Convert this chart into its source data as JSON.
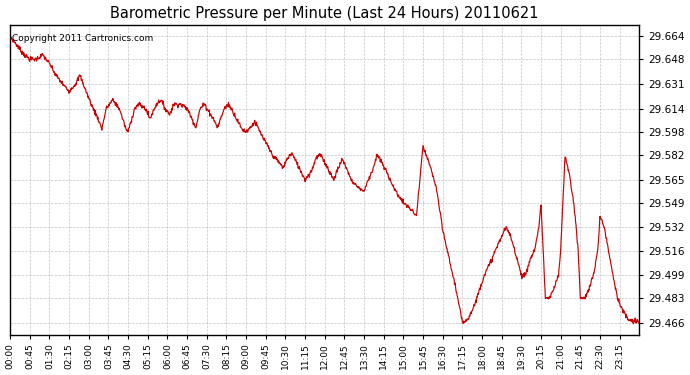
{
  "title": "Barometric Pressure per Minute (Last 24 Hours) 20110621",
  "copyright_text": "Copyright 2011 Cartronics.com",
  "line_color": "#cc0000",
  "background_color": "#ffffff",
  "grid_color": "#bbbbbb",
  "yticks": [
    29.466,
    29.483,
    29.499,
    29.516,
    29.532,
    29.549,
    29.565,
    29.582,
    29.598,
    29.614,
    29.631,
    29.648,
    29.664
  ],
  "ylim": [
    29.458,
    29.672
  ],
  "xlim": [
    0,
    1439
  ],
  "xtick_minutes": [
    0,
    45,
    90,
    135,
    180,
    225,
    270,
    315,
    360,
    405,
    450,
    495,
    540,
    585,
    630,
    675,
    720,
    765,
    810,
    855,
    900,
    945,
    990,
    1035,
    1080,
    1125,
    1170,
    1215,
    1260,
    1305,
    1350,
    1395
  ],
  "xtick_labels": [
    "00:00",
    "00:45",
    "01:30",
    "02:15",
    "03:00",
    "03:45",
    "04:30",
    "05:15",
    "06:00",
    "06:45",
    "07:30",
    "08:15",
    "09:00",
    "09:45",
    "10:30",
    "11:15",
    "12:00",
    "12:45",
    "13:30",
    "14:15",
    "15:00",
    "15:45",
    "16:30",
    "17:15",
    "18:00",
    "18:45",
    "19:30",
    "20:15",
    "21:00",
    "21:45",
    "22:30",
    "23:15"
  ],
  "waypoints_x": [
    0,
    10,
    30,
    45,
    60,
    75,
    90,
    105,
    120,
    135,
    150,
    160,
    175,
    190,
    200,
    210,
    220,
    235,
    250,
    265,
    270,
    285,
    295,
    310,
    320,
    335,
    345,
    355,
    365,
    375,
    390,
    405,
    415,
    425,
    435,
    445,
    455,
    465,
    475,
    490,
    500,
    510,
    520,
    530,
    540,
    550,
    560,
    570,
    580,
    590,
    600,
    615,
    625,
    635,
    645,
    655,
    665,
    675,
    690,
    700,
    710,
    720,
    730,
    740,
    750,
    760,
    770,
    780,
    795,
    810,
    820,
    830,
    840,
    850,
    860,
    870,
    880,
    900,
    915,
    930,
    945,
    960,
    975,
    990,
    1005,
    1020,
    1035,
    1050,
    1065,
    1075,
    1085,
    1095,
    1105,
    1115,
    1125,
    1135,
    1145,
    1155,
    1165,
    1170,
    1180,
    1190,
    1200,
    1210,
    1215,
    1225,
    1235,
    1245,
    1255,
    1260,
    1270,
    1280,
    1290,
    1300,
    1305,
    1315,
    1325,
    1335,
    1345,
    1350,
    1360,
    1370,
    1380,
    1390,
    1400,
    1410,
    1420,
    1430,
    1439
  ],
  "waypoints_y": [
    29.664,
    29.66,
    29.652,
    29.648,
    29.648,
    29.651,
    29.645,
    29.637,
    29.631,
    29.626,
    29.631,
    29.637,
    29.625,
    29.614,
    29.608,
    29.6,
    29.614,
    29.62,
    29.614,
    29.6,
    29.598,
    29.614,
    29.617,
    29.614,
    29.607,
    29.617,
    29.62,
    29.614,
    29.61,
    29.617,
    29.617,
    29.614,
    29.608,
    29.601,
    29.614,
    29.617,
    29.612,
    29.607,
    29.601,
    29.614,
    29.617,
    29.612,
    29.606,
    29.6,
    29.598,
    29.601,
    29.605,
    29.599,
    29.593,
    29.588,
    29.582,
    29.577,
    29.573,
    29.58,
    29.583,
    29.577,
    29.571,
    29.565,
    29.571,
    29.58,
    29.582,
    29.577,
    29.571,
    29.565,
    29.572,
    29.579,
    29.573,
    29.565,
    29.56,
    29.557,
    29.565,
    29.572,
    29.582,
    29.577,
    29.571,
    29.565,
    29.558,
    29.549,
    29.545,
    29.54,
    29.588,
    29.575,
    29.56,
    29.53,
    29.51,
    29.49,
    29.466,
    29.47,
    29.48,
    29.49,
    29.499,
    29.505,
    29.512,
    29.519,
    29.526,
    29.532,
    29.526,
    29.516,
    29.505,
    29.499,
    29.499,
    29.51,
    29.516,
    29.532,
    29.548,
    29.483,
    29.483,
    29.49,
    29.499,
    29.516,
    29.582,
    29.568,
    29.549,
    29.516,
    29.483,
    29.483,
    29.49,
    29.499,
    29.516,
    29.54,
    29.532,
    29.515,
    29.499,
    29.483,
    29.476,
    29.47,
    29.467,
    29.467,
    29.467
  ]
}
